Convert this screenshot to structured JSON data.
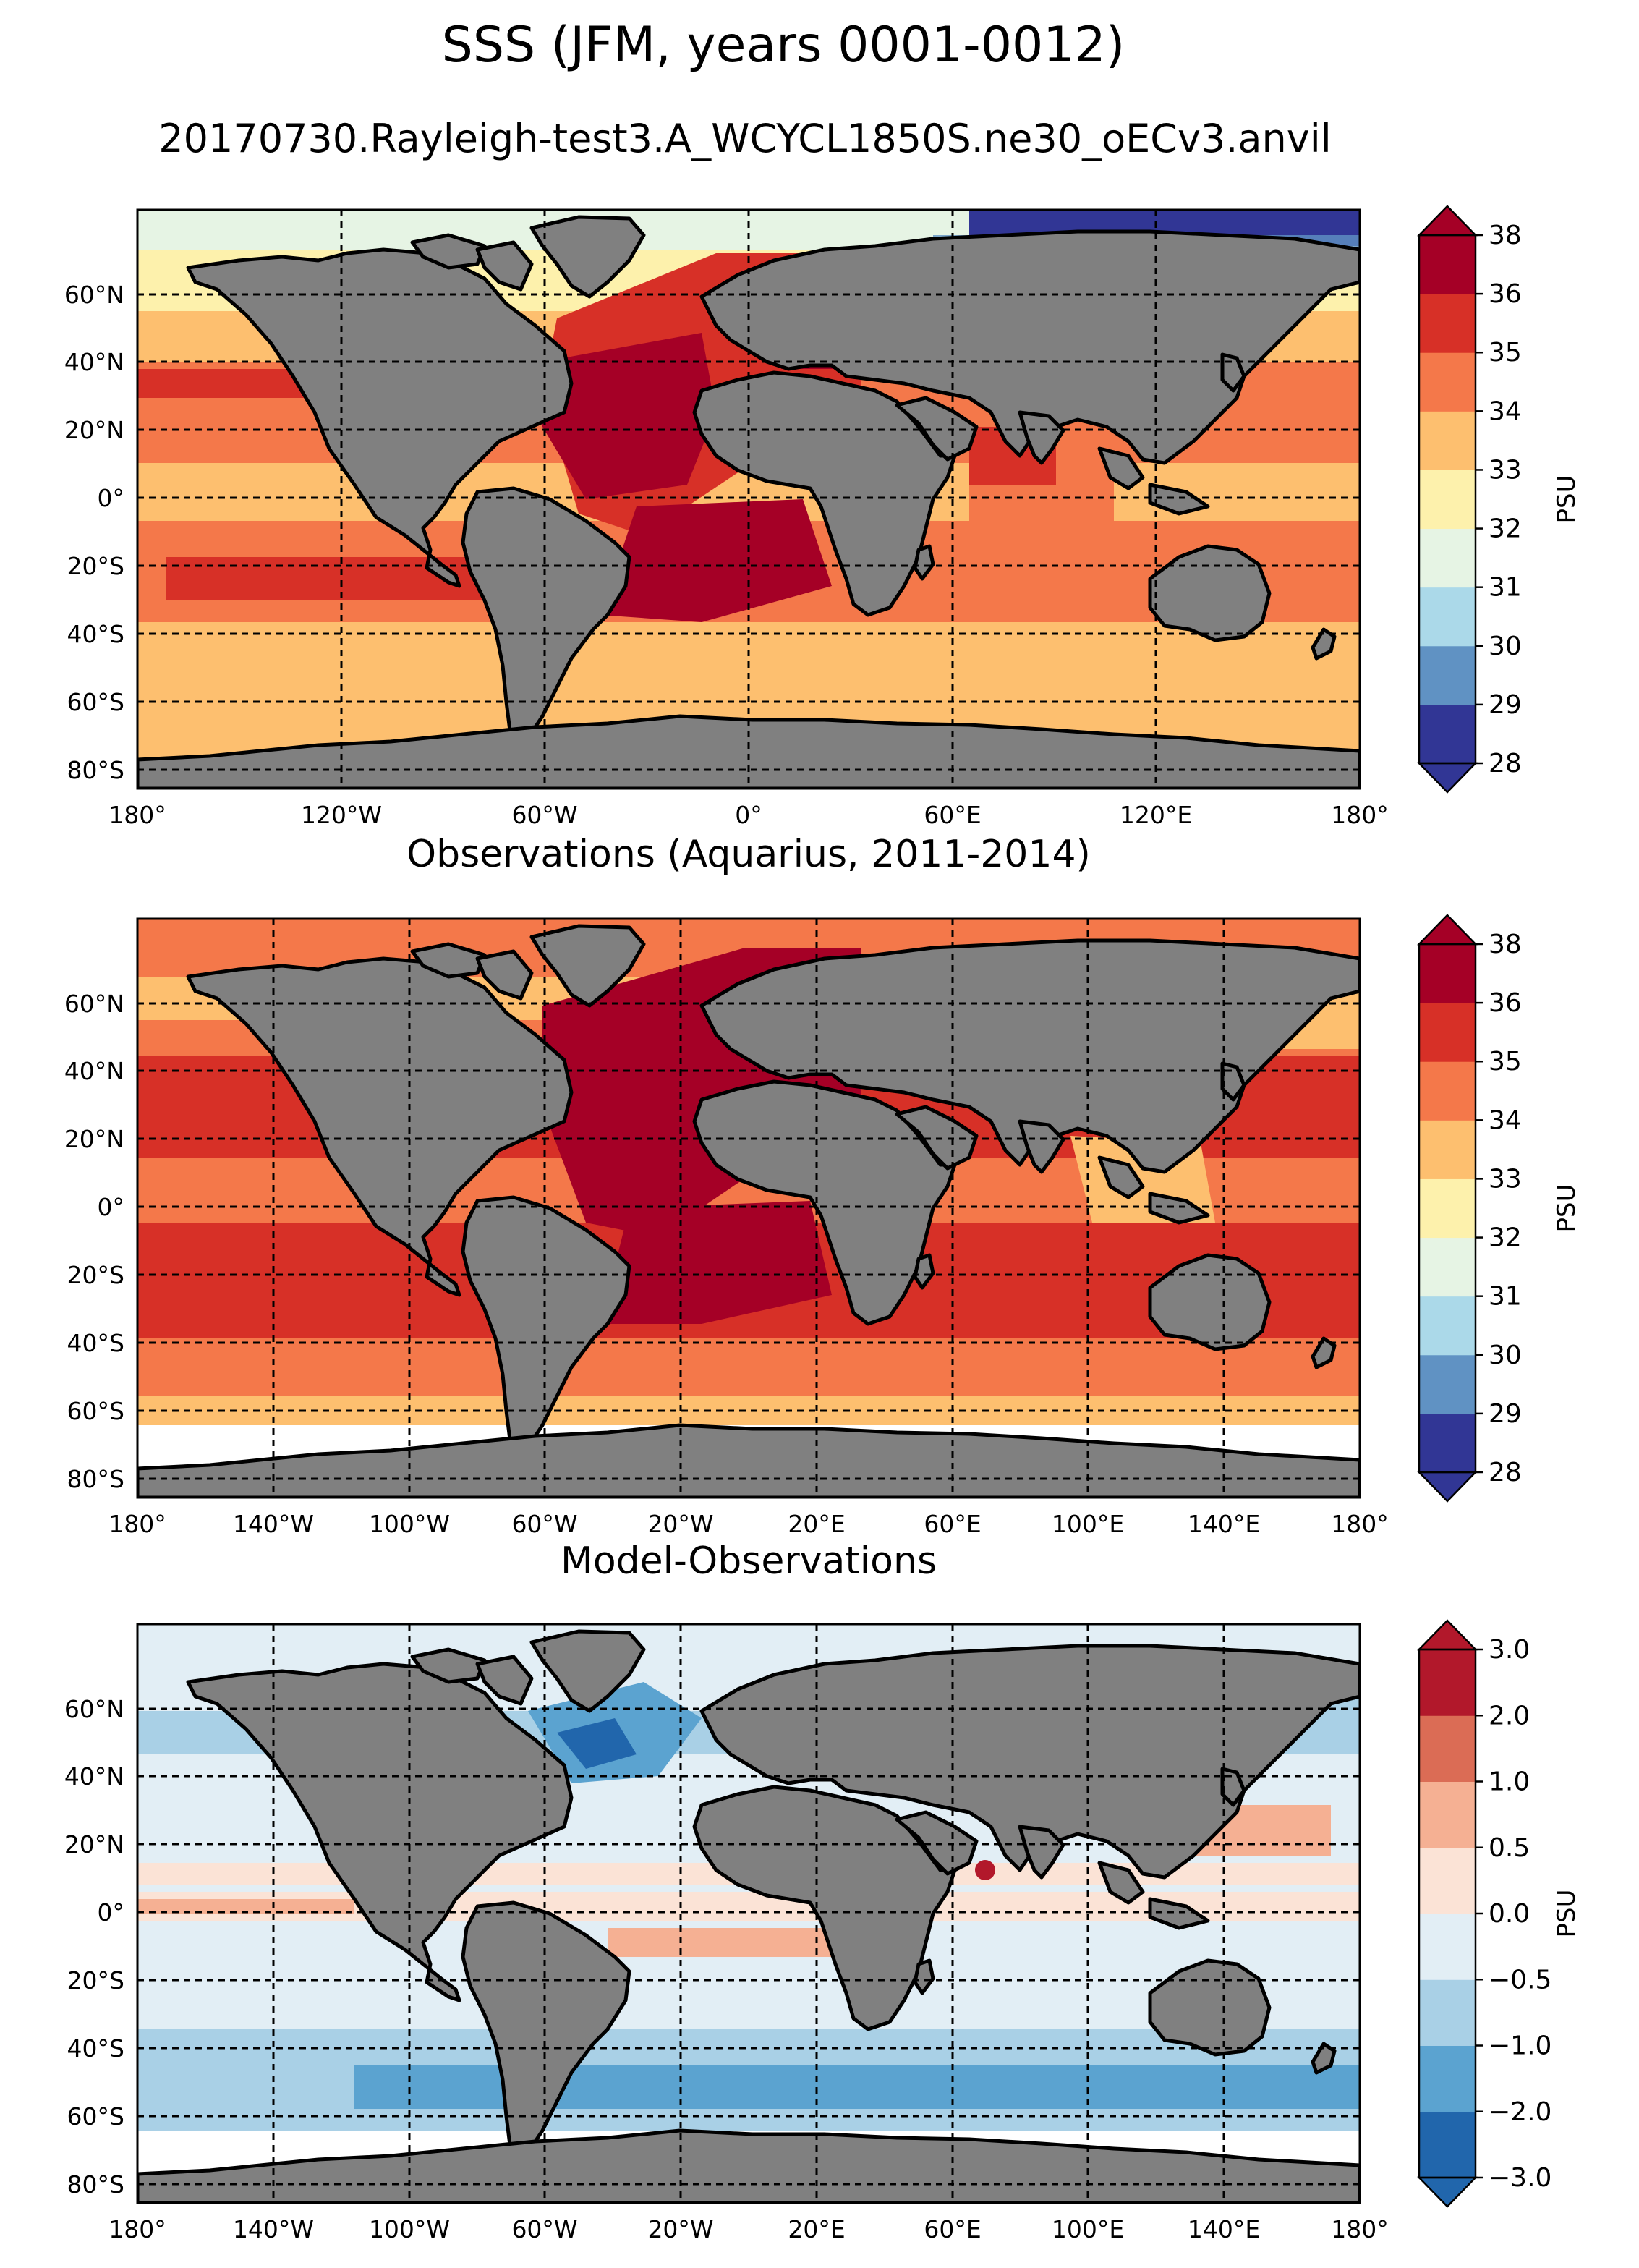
{
  "title": "SSS (JFM, years 0001-0012)",
  "subtitle": "20170730.Rayleigh-test3.A_WCYCL1850S.ne30_oECv3.anvil",
  "land_color": "#808080",
  "panels": [
    {
      "title": "",
      "lon_ticks": [
        "180°",
        "120°W",
        "60°W",
        "0°",
        "60°E",
        "120°E",
        "180°"
      ],
      "lat_ticks": [
        "60°N",
        "40°N",
        "20°N",
        "0°",
        "20°S",
        "40°S",
        "60°S",
        "80°S"
      ],
      "colorbar": {
        "label": "PSU",
        "ticks": [
          "28",
          "29",
          "30",
          "31",
          "32",
          "33",
          "34",
          "35",
          "36",
          "38"
        ],
        "colors": [
          "#313695",
          "#6092c3",
          "#abd9e9",
          "#e6f4e4",
          "#fdf1ac",
          "#fdbf6f",
          "#f4784a",
          "#d73027",
          "#a50026"
        ],
        "extend": "both"
      }
    },
    {
      "title": "Observations (Aquarius, 2011-2014)",
      "lon_ticks": [
        "180°",
        "140°W",
        "100°W",
        "60°W",
        "20°W",
        "20°E",
        "60°E",
        "100°E",
        "140°E",
        "180°"
      ],
      "lat_ticks": [
        "60°N",
        "40°N",
        "20°N",
        "0°",
        "20°S",
        "40°S",
        "60°S",
        "80°S"
      ],
      "colorbar": {
        "label": "PSU",
        "ticks": [
          "28",
          "29",
          "30",
          "31",
          "32",
          "33",
          "34",
          "35",
          "36",
          "38"
        ],
        "colors": [
          "#313695",
          "#6092c3",
          "#abd9e9",
          "#e6f4e4",
          "#fdf1ac",
          "#fdbf6f",
          "#f4784a",
          "#d73027",
          "#a50026"
        ],
        "extend": "both"
      }
    },
    {
      "title": "Model-Observations",
      "lon_ticks": [
        "180°",
        "140°W",
        "100°W",
        "60°W",
        "20°W",
        "20°E",
        "60°E",
        "100°E",
        "140°E",
        "180°"
      ],
      "lat_ticks": [
        "60°N",
        "40°N",
        "20°N",
        "0°",
        "20°S",
        "40°S",
        "60°S",
        "80°S"
      ],
      "colorbar": {
        "label": "PSU",
        "ticks": [
          "3.0",
          "2.0",
          "1.0",
          "0.5",
          "0.0",
          "−0.5",
          "−1.0",
          "−2.0",
          "−3.0"
        ],
        "colors": [
          "#2166ac",
          "#5ba3d0",
          "#a9d0e6",
          "#e2eef5",
          "#fbe3d6",
          "#f5b093",
          "#db6c55",
          "#b2182b"
        ],
        "extend": "both"
      }
    }
  ]
}
